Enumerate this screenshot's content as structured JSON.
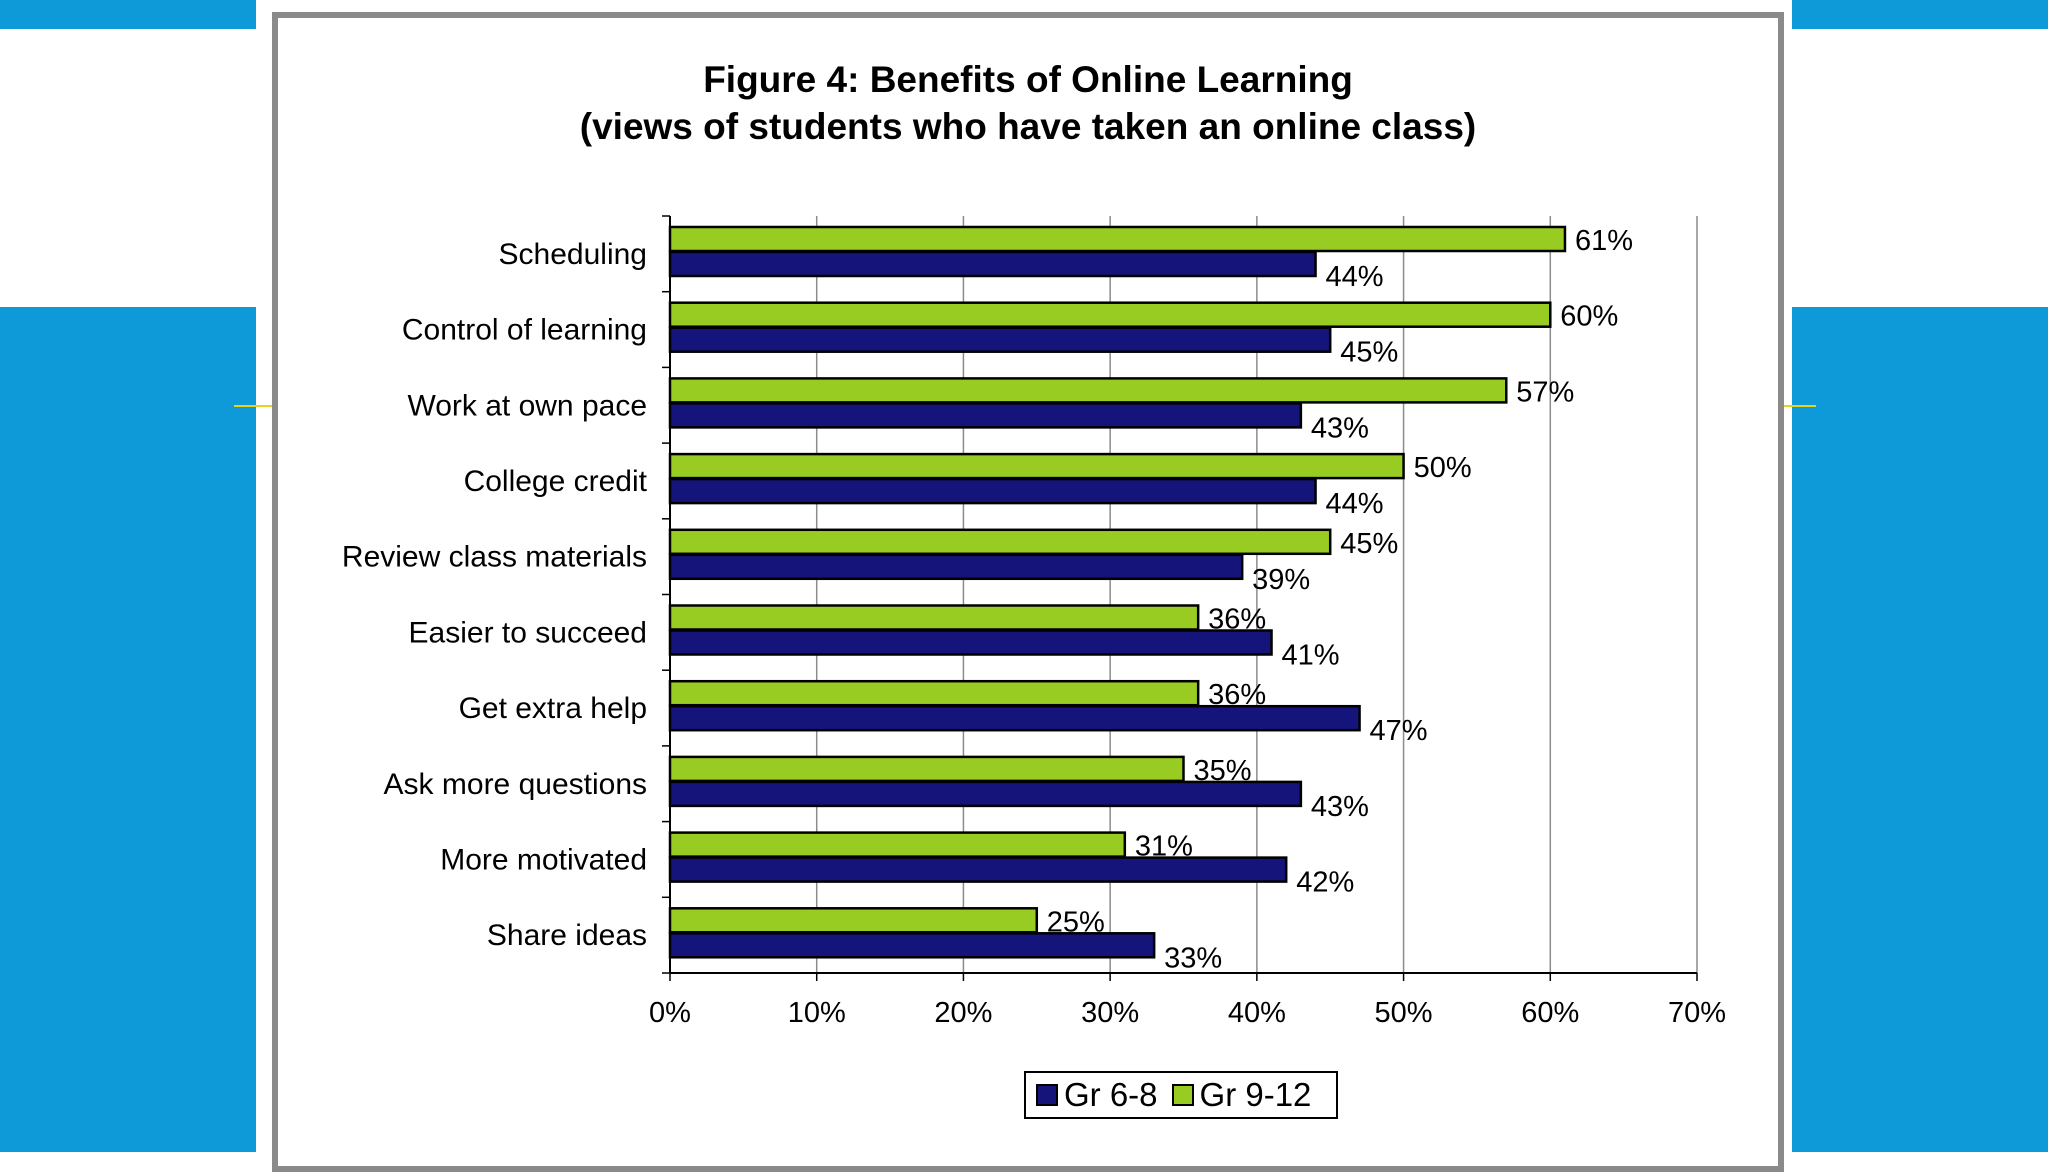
{
  "colors": {
    "background": "#0e9ad8",
    "accent_line": "#e8d31a",
    "series_gr68": "#14147a",
    "series_gr912": "#99cc22",
    "frame": "#8a8a8a"
  },
  "chart_data": {
    "type": "bar",
    "orientation": "horizontal",
    "title": "Figure 4: Benefits of Online Learning",
    "subtitle": "(views of students who have taken an online class)",
    "categories": [
      "Scheduling",
      "Control of learning",
      "Work at own pace",
      "College credit",
      "Review class materials",
      "Easier to succeed",
      "Get extra help",
      "Ask more questions",
      "More motivated",
      "Share ideas"
    ],
    "series": [
      {
        "name": "Gr 6-8",
        "color": "#14147a",
        "values": [
          44,
          45,
          43,
          44,
          39,
          41,
          47,
          43,
          42,
          33
        ]
      },
      {
        "name": "Gr 9-12",
        "color": "#99cc22",
        "values": [
          61,
          60,
          57,
          50,
          45,
          36,
          36,
          35,
          31,
          25
        ]
      }
    ],
    "data_label_suffix": "%",
    "x_ticks": [
      "0%",
      "10%",
      "20%",
      "30%",
      "40%",
      "50%",
      "60%",
      "70%"
    ],
    "xlim": [
      0,
      70
    ],
    "grid": "vertical",
    "legend_position": "bottom"
  }
}
